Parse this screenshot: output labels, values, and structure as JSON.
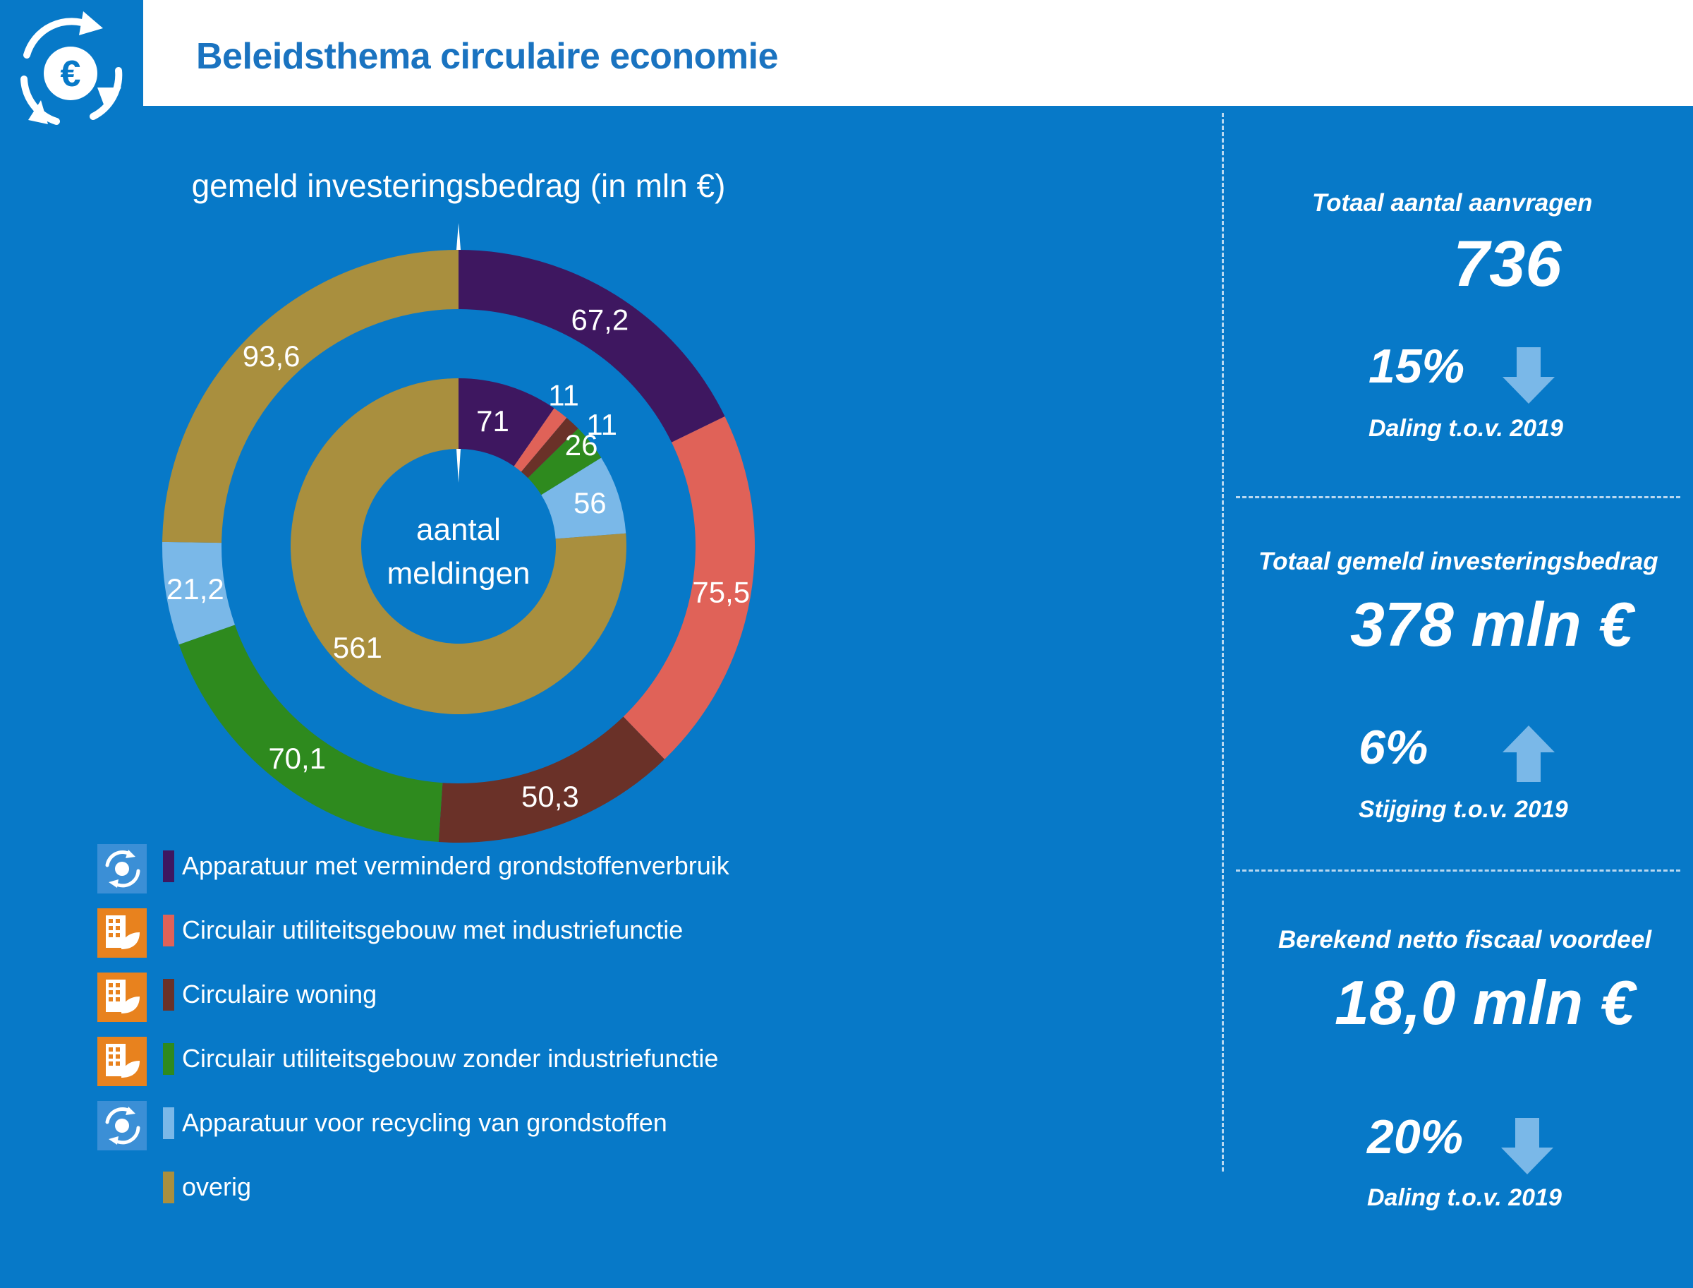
{
  "header": {
    "title": "Beleidsthema circulaire economie",
    "logo_icon": "euro-recycle-icon"
  },
  "chart_data": {
    "type": "donut",
    "title": "gemeld investeringsbedrag (in mln €)",
    "center_label": [
      "aantal",
      "meldingen"
    ],
    "categories": [
      "Apparatuur met verminderd grondstoffenverbruik",
      "Circulair utiliteitsgebouw met industriefunctie",
      "Circulaire woning",
      "Circulair utiliteitsgebouw zonder industriefunctie",
      "Apparatuur voor recycling van grondstoffen",
      "overig"
    ],
    "colors": [
      "#3e1760",
      "#e06258",
      "#6a3128",
      "#2e8a1e",
      "#7ab8e8",
      "#a98f3e"
    ],
    "series": [
      {
        "name": "gemeld investeringsbedrag (in mln €)",
        "ring": "outer",
        "values": [
          67.2,
          75.5,
          50.3,
          70.1,
          21.2,
          93.6
        ],
        "labels": [
          "67,2",
          "75,5",
          "50,3",
          "70,1",
          "21,2",
          "93,6"
        ]
      },
      {
        "name": "aantal meldingen",
        "ring": "inner",
        "values": [
          71,
          11,
          11,
          26,
          56,
          561
        ],
        "labels": [
          "71",
          "11",
          "11",
          "26",
          "56",
          "561"
        ]
      }
    ]
  },
  "legend": {
    "items": [
      {
        "label": "Apparatuur met verminderd grondstoffenverbruik",
        "color": "#3e1760",
        "icon": "recycle-device-icon"
      },
      {
        "label": "Circulair utiliteitsgebouw met industriefunctie",
        "color": "#e06258",
        "icon": "building-leaf-icon"
      },
      {
        "label": "Circulaire woning",
        "color": "#6a3128",
        "icon": "building-leaf-icon"
      },
      {
        "label": "Circulair utiliteitsgebouw zonder industriefunctie",
        "color": "#2e8a1e",
        "icon": "building-leaf-icon"
      },
      {
        "label": "Apparatuur voor recycling van grondstoffen",
        "color": "#7ab8e8",
        "icon": "recycle-device-icon"
      },
      {
        "label": "overig",
        "color": "#a98f3e",
        "icon": ""
      }
    ]
  },
  "stats": [
    {
      "label": "Totaal aantal aanvragen",
      "value": "736",
      "change_pct": "15%",
      "direction": "down",
      "change_label": "Daling t.o.v. 2019"
    },
    {
      "label": "Totaal gemeld investeringsbedrag",
      "value": "378 mln €",
      "change_pct": "6%",
      "direction": "up",
      "change_label": "Stijging t.o.v. 2019"
    },
    {
      "label": "Berekend netto fiscaal voordeel",
      "value": "18,0 mln €",
      "change_pct": "20%",
      "direction": "down",
      "change_label": "Daling t.o.v. 2019"
    }
  ],
  "colors": {
    "background": "#0779c8",
    "title": "#1a73c0",
    "arrow": "#7ab8e8",
    "icon_orange": "#e8821e"
  }
}
